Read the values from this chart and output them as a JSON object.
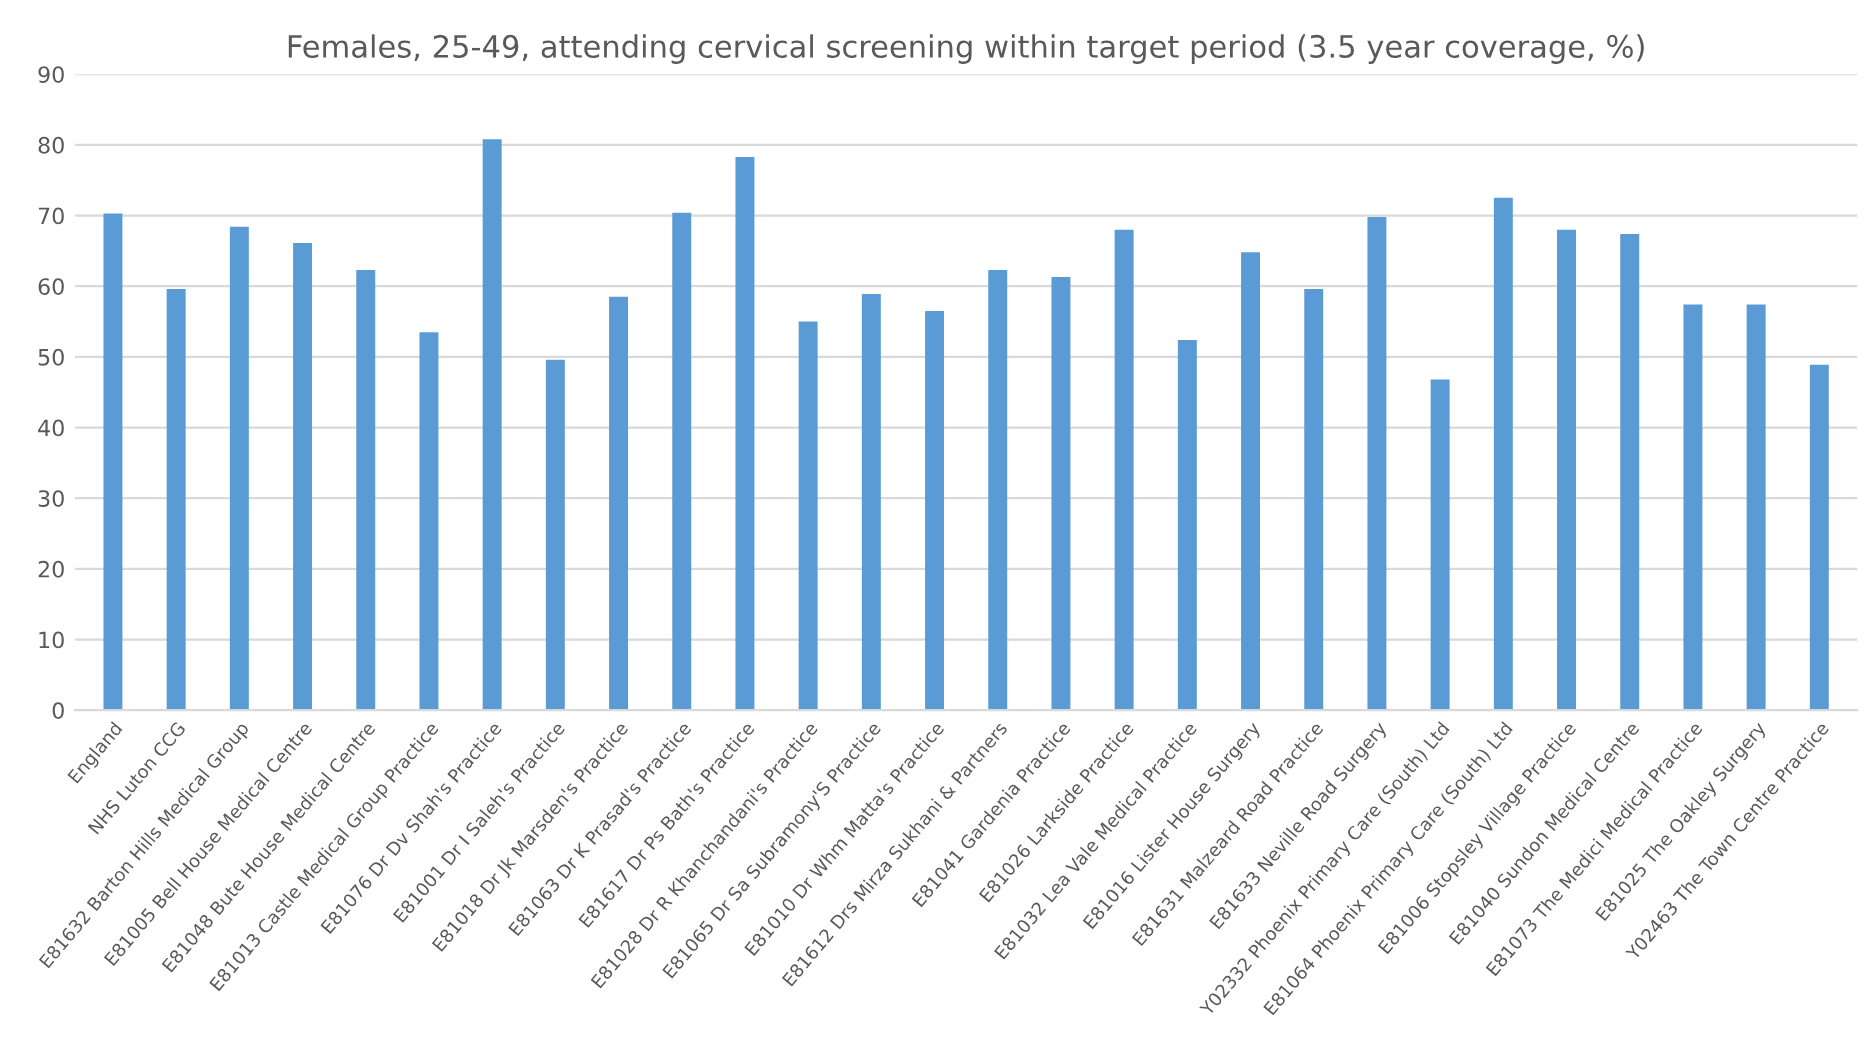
{
  "chart_data": {
    "type": "bar",
    "title": "Females, 25-49, attending cervical screening within target period (3.5 year coverage, %)",
    "categories": [
      "England",
      "NHS Luton CCG",
      "E81632 Barton Hills Medical Group",
      "E81005 Bell House Medical Centre",
      "E81048 Bute House Medical Centre",
      "E81013 Castle Medical Group Practice",
      "E81076 Dr Dv Shah's Practice",
      "E81001 Dr I Saleh's Practice",
      "E81018 Dr Jk Marsden's Practice",
      "E81063 Dr K Prasad's Practice",
      "E81617 Dr Ps Bath's Practice",
      "E81028 Dr R Khanchandani's Practice",
      "E81065 Dr Sa Subramony'S Practice",
      "E81010 Dr Whm Matta's Practice",
      "E81612 Drs Mirza Sukhani & Partners",
      "E81041 Gardenia Practice",
      "E81026 Larkside Practice",
      "E81032 Lea Vale Medical Practice",
      "E81016 Lister House Surgery",
      "E81631 Malzeard Road Practice",
      "E81633 Neville Road Surgery",
      "Y02332 Phoenix Primary Care (South) Ltd",
      "E81064 Phoenix Primary Care (South) Ltd",
      "E81006 Stopsley Village Practice",
      "E81040 Sundon Medical Centre",
      "E81073 The Medici Medical Practice",
      "E81025 The Oakley Surgery",
      "Y02463 The Town Centre Practice"
    ],
    "values": [
      70.3,
      59.6,
      68.4,
      66.1,
      62.3,
      53.5,
      80.8,
      49.6,
      58.5,
      70.4,
      78.3,
      55.0,
      58.9,
      56.5,
      62.3,
      61.3,
      68.0,
      52.4,
      64.8,
      59.6,
      69.8,
      46.8,
      72.5,
      68.0,
      67.4,
      57.4,
      57.4,
      48.9
    ],
    "color": "#5b9bd5",
    "ylim": [
      0,
      90
    ],
    "yticks": [
      0,
      10,
      20,
      30,
      40,
      50,
      60,
      70,
      80,
      90
    ],
    "grid": "y",
    "legend": false
  }
}
